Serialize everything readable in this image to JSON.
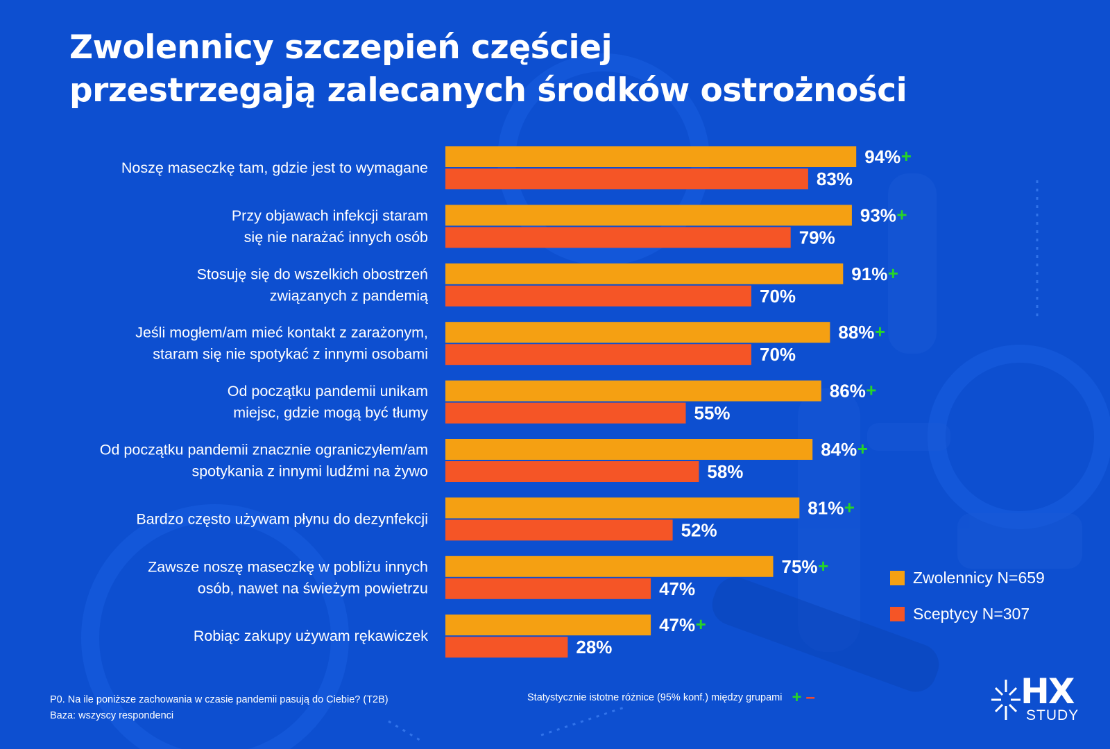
{
  "title": {
    "line1": "Zwolennicy szczepień częściej",
    "line2": "przestrzegają zalecanych środków ostrożności"
  },
  "colors": {
    "background": "#0d4fd0",
    "zwolennicy": "#f5a012",
    "sceptycy": "#f55526",
    "significance_plus": "#27d527",
    "significance_minus": "#ff4a24"
  },
  "chart_data": {
    "type": "bar",
    "orientation": "horizontal",
    "xlim": [
      0,
      100
    ],
    "unit": "%",
    "categories": [
      [
        "Noszę maseczkę tam, gdzie jest to wymagane"
      ],
      [
        "Przy objawach infekcji staram",
        "się nie narażać innych osób"
      ],
      [
        "Stosuję się do wszelkich obostrzeń",
        "związanych z pandemią"
      ],
      [
        "Jeśli mogłem/am mieć kontakt z zarażonym,",
        "staram się nie spotykać z innymi osobami"
      ],
      [
        "Od początku pandemii unikam",
        "miejsc, gdzie mogą być tłumy"
      ],
      [
        "Od początku pandemii znacznie ograniczyłem/am",
        "spotykania z innymi ludźmi na żywo"
      ],
      [
        "Bardzo często używam płynu do dezynfekcji"
      ],
      [
        "Zawsze noszę maseczkę w pobliżu innych",
        "osób, nawet na świeżym powietrzu"
      ],
      [
        "Robiąc zakupy używam rękawiczek"
      ]
    ],
    "series": [
      {
        "name": "Zwolennicy N=659",
        "values": [
          94,
          93,
          91,
          88,
          86,
          84,
          81,
          75,
          47
        ],
        "labels": [
          "94%",
          "93%",
          "91%",
          "88%",
          "86%",
          "84%",
          "81%",
          "75%",
          "47%"
        ],
        "significant": [
          true,
          true,
          true,
          true,
          true,
          true,
          true,
          true,
          true
        ]
      },
      {
        "name": "Sceptycy N=307",
        "values": [
          83,
          79,
          70,
          70,
          55,
          58,
          52,
          47,
          28
        ],
        "labels": [
          "83%",
          "79%",
          "70%",
          "70%",
          "55%",
          "58%",
          "52%",
          "47%",
          "28%"
        ],
        "significant": [
          false,
          false,
          false,
          false,
          false,
          false,
          false,
          false,
          false
        ]
      }
    ],
    "significance_symbol": "+"
  },
  "legend": {
    "zwolennicy": "Zwolennicy N=659",
    "sceptycy": "Sceptycy N=307"
  },
  "footnote": {
    "question": "P0. Na ile poniższe zachowania w czasie pandemii pasują do Ciebie? (T2B)",
    "base": "Baza: wszyscy respondenci"
  },
  "significance_note": {
    "text": "Statystycznie istotne różnice (95% konf.) między grupami",
    "plus": "+",
    "minus": "–"
  },
  "logo": {
    "brand": "HX",
    "sub": "STUDY"
  }
}
